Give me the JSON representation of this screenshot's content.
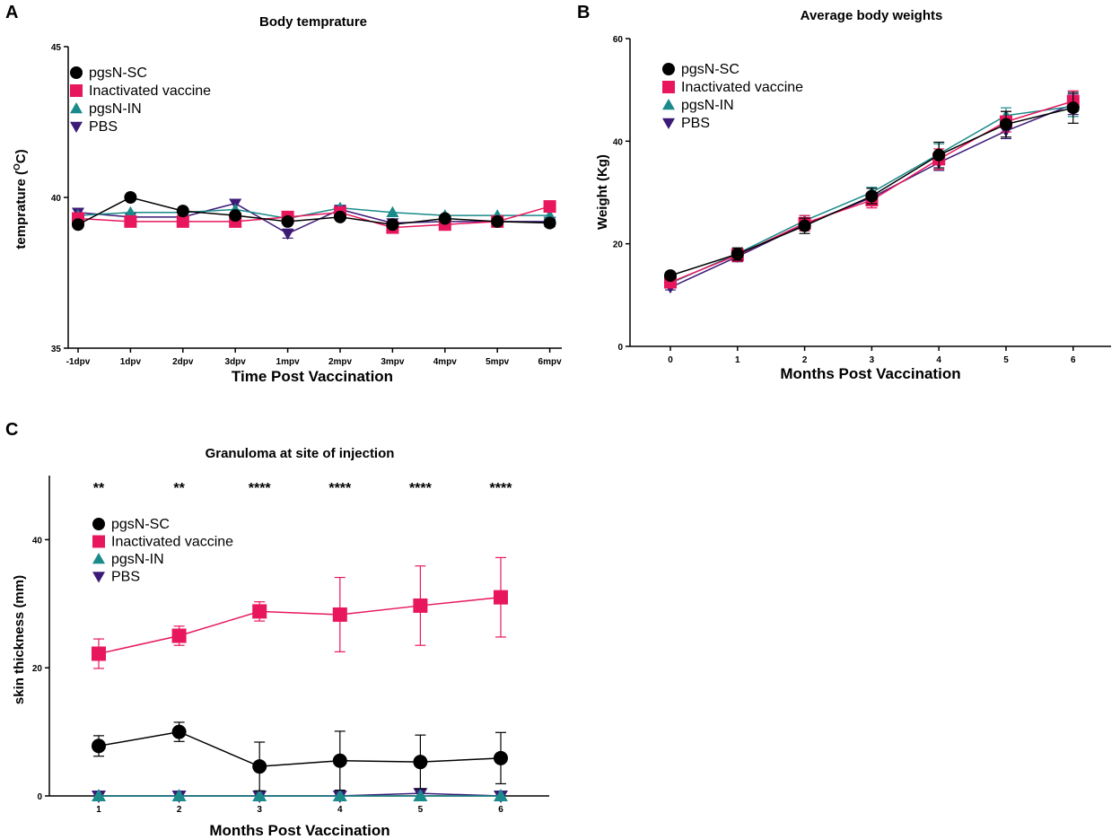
{
  "colors": {
    "pgsN-SC": "#000000",
    "Inactivated vaccine": "#e8175d",
    "pgsN-IN": "#1a8a8a",
    "PBS": "#3d1a78"
  },
  "chart_data": [
    {
      "panel": "A",
      "type": "line",
      "title": "Body temprature",
      "xlabel": "Time Post Vaccination",
      "ylabel": "temprature (",
      "ylabel_sup": "O",
      "ylabel_end": "C)",
      "ylim": [
        35,
        45
      ],
      "yticks": [
        35,
        40,
        45
      ],
      "categories": [
        "-1dpv",
        "1dpv",
        "2dpv",
        "3dpv",
        "1mpv",
        "2mpv",
        "3mpv",
        "4mpv",
        "5mpv",
        "6mpv"
      ],
      "legend": [
        "pgsN-SC",
        "Inactivated vaccine",
        "pgsN-IN",
        "PBS"
      ],
      "series": [
        {
          "name": "pgsN-SC",
          "marker": "circle",
          "values": [
            39.1,
            40.0,
            39.55,
            39.4,
            39.2,
            39.35,
            39.1,
            39.3,
            39.2,
            39.15
          ],
          "errors": [
            0,
            0,
            0,
            0,
            0,
            0,
            0,
            0,
            0,
            0.12
          ]
        },
        {
          "name": "Inactivated vaccine",
          "marker": "square",
          "values": [
            39.3,
            39.2,
            39.2,
            39.2,
            39.35,
            39.5,
            39.0,
            39.1,
            39.2,
            39.7
          ],
          "errors": [
            0,
            0,
            0,
            0,
            0,
            0,
            0,
            0,
            0,
            0
          ]
        },
        {
          "name": "pgsN-IN",
          "marker": "triangle-up",
          "values": [
            39.4,
            39.5,
            39.5,
            39.6,
            39.3,
            39.65,
            39.5,
            39.4,
            39.4,
            39.4
          ],
          "errors": [
            0,
            0,
            0,
            0,
            0,
            0,
            0,
            0,
            0,
            0
          ]
        },
        {
          "name": "PBS",
          "marker": "triangle-down",
          "values": [
            39.5,
            39.35,
            39.35,
            39.8,
            38.8,
            39.6,
            39.15,
            39.2,
            39.2,
            39.2
          ],
          "errors": [
            0,
            0,
            0,
            0,
            0.15,
            0,
            0,
            0,
            0,
            0
          ]
        }
      ]
    },
    {
      "panel": "B",
      "type": "line",
      "title": "Average body weights",
      "xlabel": "Months Post Vaccination",
      "ylabel": "Weight (Kg)",
      "ylim": [
        0,
        60
      ],
      "yticks": [
        0,
        20,
        40,
        60
      ],
      "x": [
        0,
        1,
        2,
        3,
        4,
        5,
        6
      ],
      "legend": [
        "pgsN-SC",
        "Inactivated vaccine",
        "pgsN-IN",
        "PBS"
      ],
      "series": [
        {
          "name": "pgsN-SC",
          "marker": "circle",
          "values": [
            13.8,
            18.0,
            23.5,
            29.3,
            37.3,
            43.3,
            46.5
          ],
          "errors": [
            0.5,
            1.2,
            1.5,
            1.5,
            2.5,
            2.5,
            3.0
          ]
        },
        {
          "name": "Inactivated vaccine",
          "marker": "square",
          "values": [
            12.5,
            17.8,
            24.0,
            28.5,
            36.5,
            43.8,
            47.8
          ],
          "errors": [
            0.5,
            1.2,
            1.5,
            1.5,
            2.0,
            2.0,
            2.0
          ]
        },
        {
          "name": "pgsN-IN",
          "marker": "triangle-up",
          "values": [
            12.3,
            18.1,
            24.5,
            30.0,
            37.5,
            45.0,
            46.8
          ],
          "errors": [
            0.5,
            1.0,
            1.0,
            1.0,
            2.0,
            1.5,
            2.0
          ]
        },
        {
          "name": "PBS",
          "marker": "triangle-down",
          "values": [
            11.5,
            17.5,
            23.8,
            29.0,
            35.8,
            42.0,
            47.2
          ],
          "errors": [
            0.5,
            1.0,
            1.0,
            1.0,
            1.5,
            1.5,
            2.0
          ]
        }
      ]
    },
    {
      "panel": "C",
      "type": "line",
      "title": "Granuloma at site of injection",
      "xlabel": "Months Post Vaccination",
      "ylabel": "skin thickness (mm)",
      "ylim": [
        0,
        50
      ],
      "yticks": [
        0,
        20,
        40
      ],
      "x": [
        1,
        2,
        3,
        4,
        5,
        6
      ],
      "significance": [
        "**",
        "**",
        "****",
        "****",
        "****",
        "****"
      ],
      "legend": [
        "pgsN-SC",
        "Inactivated vaccine",
        "pgsN-IN",
        "PBS"
      ],
      "series": [
        {
          "name": "pgsN-SC",
          "marker": "circle",
          "values": [
            7.8,
            10.0,
            4.6,
            5.5,
            5.3,
            5.9
          ],
          "errors": [
            1.6,
            1.5,
            3.8,
            4.6,
            4.2,
            4.0
          ]
        },
        {
          "name": "Inactivated vaccine",
          "marker": "square",
          "values": [
            22.2,
            25.0,
            28.8,
            28.3,
            29.7,
            31.0
          ],
          "errors": [
            2.3,
            1.5,
            1.5,
            5.8,
            6.2,
            6.2
          ]
        },
        {
          "name": "pgsN-IN",
          "marker": "triangle-up",
          "values": [
            0,
            0,
            0,
            0,
            0,
            0
          ],
          "errors": [
            0,
            0,
            0,
            0,
            0,
            0
          ]
        },
        {
          "name": "PBS",
          "marker": "triangle-down",
          "values": [
            0,
            0,
            0,
            0,
            0.4,
            0
          ],
          "errors": [
            0,
            0,
            0,
            0,
            0,
            0
          ]
        }
      ]
    }
  ]
}
